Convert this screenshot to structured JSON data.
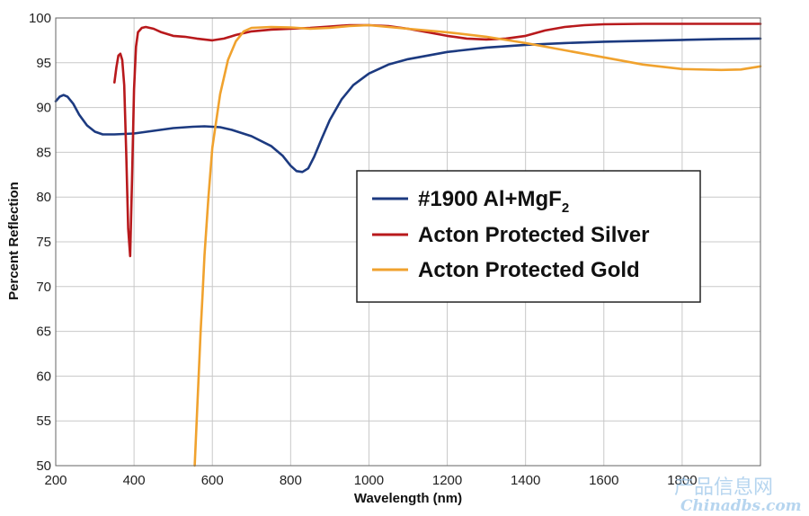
{
  "chart_data": {
    "type": "line",
    "xlabel": "Wavelength (nm)",
    "ylabel": "Percent Reflection",
    "xlim": [
      200,
      2000
    ],
    "ylim": [
      50,
      100
    ],
    "xticks": [
      200,
      400,
      600,
      800,
      1000,
      1200,
      1400,
      1600,
      1800
    ],
    "yticks": [
      50,
      55,
      60,
      65,
      70,
      75,
      80,
      85,
      90,
      95,
      100
    ],
    "grid": true,
    "legend_position": "center-right",
    "series": [
      {
        "name": "#1900 Al+MgF",
        "name_subscript": "2",
        "color": "#1c3a80",
        "points": [
          [
            200,
            90.7
          ],
          [
            210,
            91.2
          ],
          [
            220,
            91.4
          ],
          [
            230,
            91.2
          ],
          [
            245,
            90.4
          ],
          [
            260,
            89.2
          ],
          [
            280,
            88.0
          ],
          [
            300,
            87.3
          ],
          [
            320,
            87.0
          ],
          [
            350,
            87.0
          ],
          [
            400,
            87.1
          ],
          [
            450,
            87.4
          ],
          [
            500,
            87.7
          ],
          [
            550,
            87.85
          ],
          [
            580,
            87.9
          ],
          [
            620,
            87.8
          ],
          [
            650,
            87.5
          ],
          [
            700,
            86.8
          ],
          [
            750,
            85.7
          ],
          [
            780,
            84.6
          ],
          [
            800,
            83.5
          ],
          [
            815,
            82.9
          ],
          [
            830,
            82.8
          ],
          [
            845,
            83.2
          ],
          [
            860,
            84.5
          ],
          [
            880,
            86.6
          ],
          [
            900,
            88.6
          ],
          [
            930,
            90.9
          ],
          [
            960,
            92.5
          ],
          [
            1000,
            93.8
          ],
          [
            1050,
            94.8
          ],
          [
            1100,
            95.4
          ],
          [
            1200,
            96.2
          ],
          [
            1300,
            96.7
          ],
          [
            1400,
            97.0
          ],
          [
            1500,
            97.2
          ],
          [
            1600,
            97.35
          ],
          [
            1700,
            97.45
          ],
          [
            1800,
            97.55
          ],
          [
            1900,
            97.65
          ],
          [
            2000,
            97.7
          ]
        ]
      },
      {
        "name": "Acton Protected Silver",
        "color": "#b8191c",
        "points": [
          [
            350,
            92.8
          ],
          [
            355,
            94.5
          ],
          [
            360,
            95.8
          ],
          [
            365,
            96.0
          ],
          [
            370,
            95.3
          ],
          [
            375,
            92.5
          ],
          [
            380,
            85.0
          ],
          [
            385,
            76.5
          ],
          [
            390,
            73.4
          ],
          [
            395,
            82.0
          ],
          [
            400,
            92.0
          ],
          [
            405,
            96.8
          ],
          [
            410,
            98.4
          ],
          [
            420,
            98.9
          ],
          [
            430,
            99.0
          ],
          [
            450,
            98.8
          ],
          [
            470,
            98.4
          ],
          [
            500,
            98.0
          ],
          [
            530,
            97.9
          ],
          [
            560,
            97.7
          ],
          [
            600,
            97.5
          ],
          [
            630,
            97.7
          ],
          [
            660,
            98.1
          ],
          [
            700,
            98.5
          ],
          [
            750,
            98.7
          ],
          [
            800,
            98.8
          ],
          [
            850,
            98.9
          ],
          [
            900,
            99.05
          ],
          [
            950,
            99.2
          ],
          [
            1000,
            99.2
          ],
          [
            1050,
            99.1
          ],
          [
            1100,
            98.8
          ],
          [
            1150,
            98.4
          ],
          [
            1200,
            98.0
          ],
          [
            1250,
            97.7
          ],
          [
            1300,
            97.6
          ],
          [
            1350,
            97.7
          ],
          [
            1400,
            98.0
          ],
          [
            1450,
            98.6
          ],
          [
            1500,
            99.0
          ],
          [
            1550,
            99.2
          ],
          [
            1600,
            99.3
          ],
          [
            1700,
            99.35
          ],
          [
            1800,
            99.35
          ],
          [
            1900,
            99.35
          ],
          [
            2000,
            99.35
          ]
        ]
      },
      {
        "name": "Acton Protected Gold",
        "color": "#f0a22e",
        "points": [
          [
            555,
            50.0
          ],
          [
            560,
            55.0
          ],
          [
            565,
            60.0
          ],
          [
            570,
            65.0
          ],
          [
            575,
            69.0
          ],
          [
            580,
            73.5
          ],
          [
            590,
            80.0
          ],
          [
            600,
            85.5
          ],
          [
            620,
            91.5
          ],
          [
            640,
            95.3
          ],
          [
            660,
            97.4
          ],
          [
            680,
            98.5
          ],
          [
            700,
            98.9
          ],
          [
            750,
            99.0
          ],
          [
            800,
            98.95
          ],
          [
            850,
            98.8
          ],
          [
            900,
            98.9
          ],
          [
            950,
            99.1
          ],
          [
            1000,
            99.2
          ],
          [
            1050,
            99.0
          ],
          [
            1100,
            98.8
          ],
          [
            1200,
            98.4
          ],
          [
            1300,
            97.9
          ],
          [
            1400,
            97.2
          ],
          [
            1500,
            96.4
          ],
          [
            1600,
            95.6
          ],
          [
            1700,
            94.8
          ],
          [
            1800,
            94.3
          ],
          [
            1900,
            94.2
          ],
          [
            1950,
            94.25
          ],
          [
            2000,
            94.6
          ]
        ]
      }
    ]
  },
  "watermark": {
    "line1": "产品信息网",
    "line2": "Chinadbs.com"
  }
}
